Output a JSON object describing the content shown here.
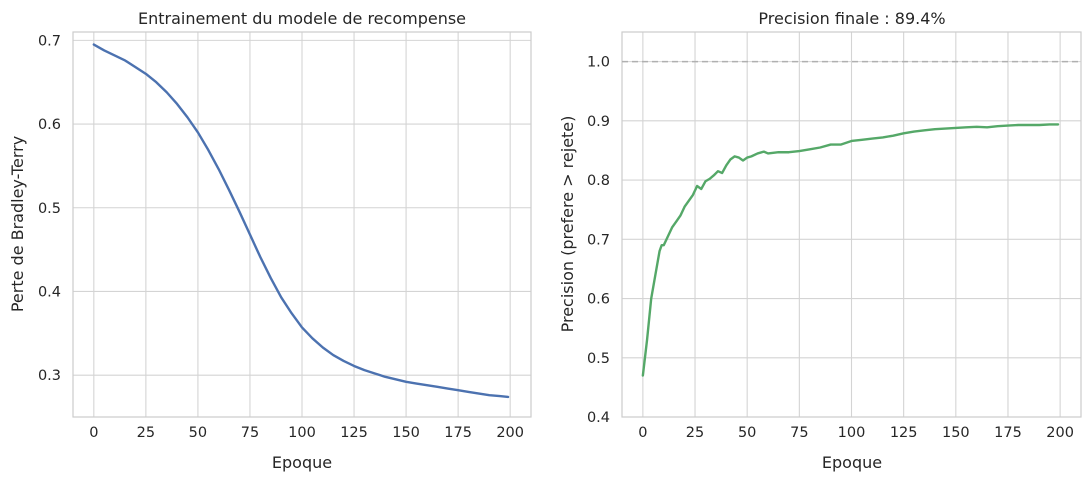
{
  "chart_data": [
    {
      "type": "line",
      "title": "Entrainement du modele de recompense",
      "xlabel": "Epoque",
      "ylabel": "Perte de Bradley-Terry",
      "xlim": [
        -10,
        210
      ],
      "ylim": [
        0.25,
        0.71
      ],
      "xticks": [
        "0",
        "25",
        "50",
        "75",
        "100",
        "125",
        "150",
        "175",
        "200"
      ],
      "yticks": [
        "0.3",
        "0.4",
        "0.5",
        "0.6",
        "0.7"
      ],
      "grid": true,
      "color": "#4c72b0",
      "series": [
        {
          "x": [
            0,
            5,
            10,
            15,
            20,
            25,
            30,
            35,
            40,
            45,
            50,
            55,
            60,
            65,
            70,
            75,
            80,
            85,
            90,
            95,
            100,
            105,
            110,
            115,
            120,
            125,
            130,
            135,
            140,
            145,
            150,
            155,
            160,
            165,
            170,
            175,
            180,
            185,
            190,
            195,
            199
          ],
          "y": [
            0.695,
            0.688,
            0.682,
            0.676,
            0.668,
            0.66,
            0.65,
            0.638,
            0.624,
            0.608,
            0.59,
            0.569,
            0.546,
            0.521,
            0.495,
            0.468,
            0.441,
            0.416,
            0.393,
            0.374,
            0.357,
            0.344,
            0.333,
            0.324,
            0.317,
            0.311,
            0.306,
            0.302,
            0.298,
            0.295,
            0.292,
            0.29,
            0.288,
            0.286,
            0.284,
            0.282,
            0.28,
            0.278,
            0.276,
            0.275,
            0.274
          ]
        }
      ]
    },
    {
      "type": "line",
      "title": "Precision finale : 89.4%",
      "xlabel": "Epoque",
      "ylabel": "Precision (prefere > rejete)",
      "xlim": [
        -10,
        210
      ],
      "ylim": [
        0.4,
        1.05
      ],
      "xticks": [
        "0",
        "25",
        "50",
        "75",
        "100",
        "125",
        "150",
        "175",
        "200"
      ],
      "yticks": [
        "0.4",
        "0.5",
        "0.6",
        "0.7",
        "0.8",
        "0.9",
        "1.0"
      ],
      "grid": true,
      "reference_line": {
        "y": 1.0,
        "style": "dashed",
        "color": "#b0b0b0"
      },
      "color": "#55a868",
      "series": [
        {
          "x": [
            0,
            2,
            4,
            6,
            8,
            9,
            10,
            12,
            14,
            16,
            18,
            20,
            22,
            24,
            26,
            28,
            30,
            32,
            34,
            36,
            38,
            40,
            42,
            44,
            46,
            48,
            50,
            52,
            55,
            58,
            60,
            65,
            70,
            75,
            80,
            85,
            90,
            95,
            100,
            105,
            110,
            115,
            120,
            125,
            130,
            135,
            140,
            145,
            150,
            155,
            160,
            165,
            170,
            175,
            180,
            185,
            190,
            195,
            199
          ],
          "y": [
            0.47,
            0.53,
            0.6,
            0.64,
            0.68,
            0.69,
            0.69,
            0.705,
            0.72,
            0.73,
            0.74,
            0.755,
            0.765,
            0.775,
            0.79,
            0.785,
            0.798,
            0.802,
            0.808,
            0.815,
            0.812,
            0.825,
            0.835,
            0.84,
            0.838,
            0.833,
            0.838,
            0.84,
            0.845,
            0.848,
            0.845,
            0.847,
            0.847,
            0.849,
            0.852,
            0.855,
            0.86,
            0.86,
            0.866,
            0.868,
            0.87,
            0.872,
            0.875,
            0.879,
            0.882,
            0.884,
            0.886,
            0.887,
            0.888,
            0.889,
            0.89,
            0.889,
            0.891,
            0.892,
            0.893,
            0.893,
            0.893,
            0.894,
            0.894
          ]
        }
      ]
    }
  ]
}
